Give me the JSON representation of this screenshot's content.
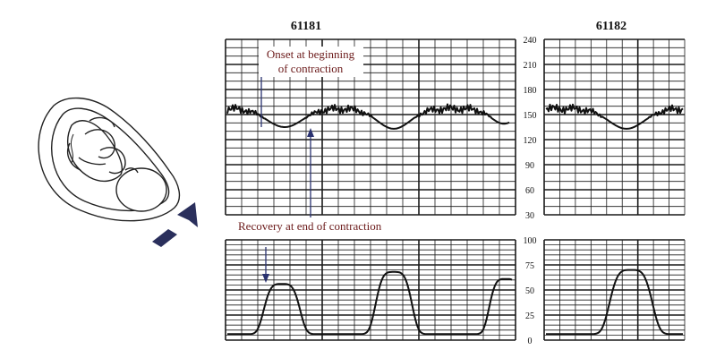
{
  "panels": [
    {
      "id": "61181",
      "label": "61181"
    },
    {
      "id": "61182",
      "label": "61182"
    }
  ],
  "fhr_axis": {
    "ticks": [
      {
        "value": 240,
        "label": "240"
      },
      {
        "value": 210,
        "label": "210"
      },
      {
        "value": 180,
        "label": "180"
      },
      {
        "value": 150,
        "label": "150"
      },
      {
        "value": 120,
        "label": "120"
      },
      {
        "value": 90,
        "label": "90"
      },
      {
        "value": 60,
        "label": "60"
      },
      {
        "value": 30,
        "label": "30"
      }
    ]
  },
  "uc_axis": {
    "ticks": [
      {
        "value": 100,
        "label": "100"
      },
      {
        "value": 75,
        "label": "75"
      },
      {
        "value": 50,
        "label": "50"
      },
      {
        "value": 25,
        "label": "25"
      },
      {
        "value": 0,
        "label": "0"
      }
    ]
  },
  "annotations": {
    "onset_line1": "Onset at beginning",
    "onset_line2": "of contraction",
    "recovery": "Recovery at end of contraction"
  },
  "colors": {
    "grid": "#1a1a1a",
    "trace": "#111111",
    "annotation_text": "#6b1a1a",
    "arrow": "#2a2f5c",
    "pointer": "#2a3270"
  },
  "icons": [
    "fetus-in-uterus-illustration",
    "uterine-pressure-arrow-icon"
  ]
}
